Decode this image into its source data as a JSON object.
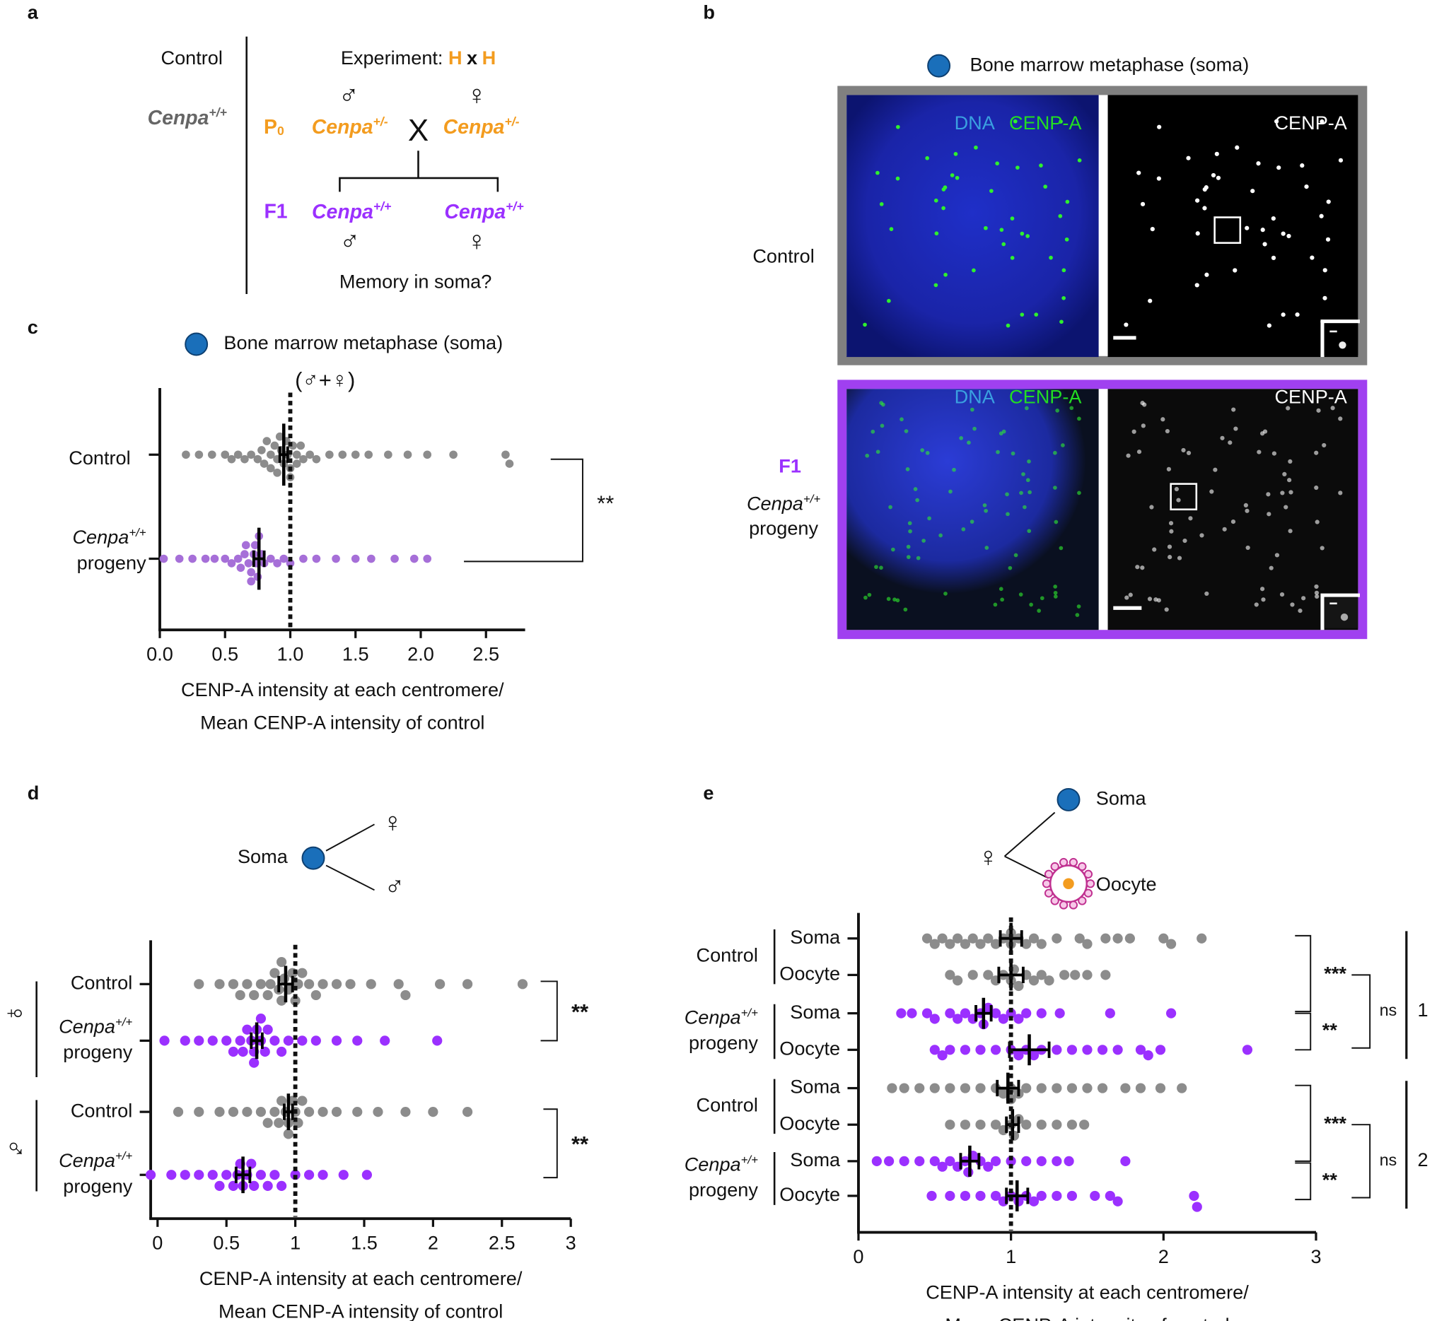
{
  "panel_a": {
    "label": "a",
    "control": "Control",
    "control_genotype": "Cenpa",
    "control_genotype_sup": "+/+",
    "experiment": "Experiment: ",
    "h_left": "H",
    "cross_x": "x",
    "h_right": "H",
    "p0": "P",
    "p0_sub": "0",
    "male": "♂",
    "female": "♀",
    "p0_male": "Cenpa",
    "p0_male_sup": "+/-",
    "p0_female": "Cenpa",
    "p0_female_sup": "+/-",
    "cross": "X",
    "f1": "F1",
    "f1_male": "Cenpa",
    "f1_male_sup": "+/+",
    "f1_female": "Cenpa",
    "f1_female_sup": "+/+",
    "f1_male_symbol": "♂",
    "f1_female_symbol": "♀",
    "question": "Memory in soma?"
  },
  "panel_b": {
    "label": "b",
    "legend": "Bone marrow metaphase (soma)",
    "rows": [
      {
        "label": "Control",
        "dna": "DNA",
        "cenpa": "CENP-A",
        "cenpa_right": "CENP-A"
      },
      {
        "label": "F1",
        "genotype": "Cenpa",
        "genotype_sup": "+/+",
        "label_line2": "progeny",
        "dna": "DNA",
        "cenpa": "CENP-A",
        "cenpa_right": "CENP-A"
      }
    ]
  },
  "chart_data": [
    {
      "type": "strip",
      "panel": "c",
      "legend": "Bone marrow metaphase (soma)",
      "subtitle": "(♂+♀)",
      "xlim": [
        0,
        2.8
      ],
      "xticks": [
        {
          "value": 0,
          "label": "0.0"
        },
        0.5,
        {
          "value": 1,
          "label": "1.0"
        },
        1.5,
        {
          "value": 2,
          "label": "2.0"
        },
        2.5
      ],
      "x_label": [
        "CENP-A intensity at each centromere/",
        "Mean CENP-A intensity of control"
      ],
      "reference_line": 1,
      "significance": "**",
      "series": [
        {
          "name": "Control",
          "color": "#8c8c8c",
          "mean": 0.95,
          "error": 0.03,
          "values": [
            0.2,
            0.3,
            0.4,
            0.5,
            0.55,
            0.6,
            0.65,
            0.7,
            0.75,
            0.78,
            0.8,
            0.82,
            0.85,
            0.85,
            0.88,
            0.9,
            0.9,
            0.92,
            0.93,
            0.95,
            0.97,
            0.98,
            1.0,
            1.0,
            1.02,
            1.05,
            1.05,
            1.08,
            1.1,
            1.15,
            1.2,
            1.3,
            1.4,
            1.5,
            1.6,
            1.75,
            1.9,
            2.05,
            2.25,
            2.65,
            2.68
          ]
        },
        {
          "name": "Cenpa",
          "name_sup": "+/+",
          "name_line2": "progeny",
          "color": "#a66fd8",
          "mean": 0.76,
          "error": 0.04,
          "values": [
            0.03,
            0.15,
            0.25,
            0.35,
            0.42,
            0.5,
            0.55,
            0.6,
            0.62,
            0.65,
            0.66,
            0.68,
            0.7,
            0.7,
            0.72,
            0.73,
            0.74,
            0.75,
            0.76,
            0.78,
            0.8,
            0.85,
            0.9,
            0.95,
            1.0,
            1.1,
            1.2,
            1.35,
            1.5,
            1.62,
            1.8,
            1.95,
            2.05
          ]
        }
      ]
    },
    {
      "type": "strip",
      "panel": "d",
      "soma": "Soma",
      "female": "♀",
      "male": "♂",
      "xlim": [
        -0.05,
        3
      ],
      "xticks": [
        0,
        0.5,
        1,
        1.5,
        2,
        2.5,
        3
      ],
      "x_label": [
        "CENP-A intensity at each centromere/",
        "Mean CENP-A intensity of control"
      ],
      "reference_line": 1,
      "sex_labels": [
        "♀",
        "♂"
      ],
      "significance": [
        "**",
        "**"
      ],
      "series": [
        {
          "name": "Control",
          "color": "#8c8c8c",
          "mean": 0.93,
          "error": 0.05,
          "values": [
            0.3,
            0.45,
            0.55,
            0.6,
            0.65,
            0.7,
            0.75,
            0.8,
            0.82,
            0.85,
            0.88,
            0.9,
            0.9,
            0.92,
            0.95,
            0.98,
            1.0,
            1.02,
            1.05,
            1.1,
            1.15,
            1.2,
            1.3,
            1.4,
            1.55,
            1.75,
            1.8,
            2.05,
            2.25,
            2.65
          ]
        },
        {
          "name": "Cenpa",
          "name_sup": "+/+",
          "name_line2": "progeny",
          "color": "#9b30ff",
          "mean": 0.72,
          "error": 0.04,
          "values": [
            0.05,
            0.2,
            0.3,
            0.4,
            0.5,
            0.55,
            0.6,
            0.62,
            0.65,
            0.68,
            0.7,
            0.7,
            0.72,
            0.75,
            0.75,
            0.78,
            0.8,
            0.85,
            0.9,
            0.95,
            1.05,
            1.15,
            1.3,
            1.45,
            1.65,
            2.03
          ]
        },
        {
          "name": "Control",
          "color": "#8c8c8c",
          "mean": 0.95,
          "error": 0.03,
          "values": [
            0.15,
            0.3,
            0.45,
            0.55,
            0.65,
            0.75,
            0.8,
            0.85,
            0.88,
            0.9,
            0.93,
            0.95,
            0.95,
            0.98,
            1.0,
            1.02,
            1.05,
            1.1,
            1.2,
            1.3,
            1.45,
            1.6,
            1.8,
            2.0,
            2.25
          ]
        },
        {
          "name": "Cenpa",
          "name_sup": "+/+",
          "name_line2": "progeny",
          "color": "#9b30ff",
          "mean": 0.62,
          "error": 0.05,
          "values": [
            -0.05,
            0.1,
            0.2,
            0.3,
            0.4,
            0.45,
            0.5,
            0.55,
            0.58,
            0.6,
            0.62,
            0.65,
            0.68,
            0.7,
            0.75,
            0.8,
            0.85,
            0.9,
            1.0,
            1.1,
            1.2,
            1.35,
            1.52
          ]
        }
      ]
    },
    {
      "type": "strip",
      "panel": "e",
      "soma": "Soma",
      "oocyte": "Oocyte",
      "female": "♀",
      "xlim": [
        0,
        3
      ],
      "xticks": [
        0,
        1,
        2,
        3
      ],
      "x_label": [
        "CENP-A intensity at each centromere/",
        "Mean CENP-A intensity of control"
      ],
      "reference_line": 1,
      "comparisons": [
        {
          "soma": "***",
          "oocyte": "**",
          "between": "ns",
          "label": "1"
        },
        {
          "soma": "***",
          "oocyte": "**",
          "between": "ns",
          "label": "2"
        }
      ],
      "groups": [
        {
          "label": "Control",
          "series": [
            {
              "name": "Soma",
              "color": "#8c8c8c",
              "mean": 1.0,
              "error": 0.07,
              "values": [
                0.45,
                0.5,
                0.55,
                0.6,
                0.65,
                0.7,
                0.75,
                0.8,
                0.85,
                0.9,
                0.95,
                1.0,
                1.0,
                1.05,
                1.1,
                1.15,
                1.2,
                1.3,
                1.45,
                1.5,
                1.62,
                1.7,
                1.78,
                2.0,
                2.05,
                2.25
              ]
            },
            {
              "name": "Oocyte",
              "color": "#8c8c8c",
              "mean": 1.0,
              "error": 0.08,
              "values": [
                0.6,
                0.65,
                0.75,
                0.85,
                0.9,
                0.95,
                1.0,
                1.02,
                1.05,
                1.1,
                1.15,
                1.2,
                1.25,
                1.35,
                1.42,
                1.5,
                1.62
              ]
            }
          ]
        },
        {
          "label": "Cenpa",
          "label_sup": "+/+",
          "label_line2": "progeny",
          "series": [
            {
              "name": "Soma",
              "color": "#9b30ff",
              "mean": 0.82,
              "error": 0.05,
              "values": [
                0.28,
                0.35,
                0.45,
                0.5,
                0.6,
                0.65,
                0.7,
                0.75,
                0.8,
                0.82,
                0.85,
                0.9,
                0.95,
                1.0,
                1.05,
                1.1,
                1.2,
                1.32,
                1.65,
                2.05
              ]
            },
            {
              "name": "Oocyte",
              "color": "#9b30ff",
              "mean": 1.12,
              "error": 0.13,
              "values": [
                0.5,
                0.55,
                0.6,
                0.7,
                0.8,
                0.9,
                1.0,
                1.05,
                1.1,
                1.15,
                1.2,
                1.3,
                1.4,
                1.5,
                1.6,
                1.7,
                1.85,
                1.9,
                1.98,
                2.55
              ]
            }
          ]
        },
        {
          "label": "Control",
          "series": [
            {
              "name": "Soma",
              "color": "#8c8c8c",
              "mean": 0.98,
              "error": 0.07,
              "values": [
                0.22,
                0.3,
                0.4,
                0.5,
                0.6,
                0.7,
                0.8,
                0.9,
                0.95,
                1.0,
                1.0,
                1.05,
                1.1,
                1.2,
                1.3,
                1.4,
                1.5,
                1.6,
                1.75,
                1.85,
                1.98,
                2.12
              ]
            },
            {
              "name": "Oocyte",
              "color": "#8c8c8c",
              "mean": 1.01,
              "error": 0.04,
              "values": [
                0.6,
                0.7,
                0.8,
                0.9,
                0.95,
                1.0,
                1.02,
                1.05,
                1.1,
                1.2,
                1.3,
                1.4,
                1.48
              ]
            }
          ]
        },
        {
          "label": "Cenpa",
          "label_sup": "+/+",
          "label_line2": "progeny",
          "series": [
            {
              "name": "Soma",
              "color": "#9b30ff",
              "mean": 0.73,
              "error": 0.06,
              "values": [
                0.12,
                0.2,
                0.3,
                0.4,
                0.5,
                0.55,
                0.6,
                0.65,
                0.7,
                0.72,
                0.75,
                0.8,
                0.85,
                0.9,
                1.0,
                1.1,
                1.2,
                1.3,
                1.38,
                1.75
              ]
            },
            {
              "name": "Oocyte",
              "color": "#9b30ff",
              "mean": 1.04,
              "error": 0.07,
              "values": [
                0.48,
                0.6,
                0.7,
                0.8,
                0.9,
                0.95,
                1.0,
                1.05,
                1.1,
                1.15,
                1.2,
                1.3,
                1.4,
                1.55,
                1.65,
                1.7,
                2.2,
                2.22
              ]
            }
          ]
        }
      ]
    }
  ]
}
